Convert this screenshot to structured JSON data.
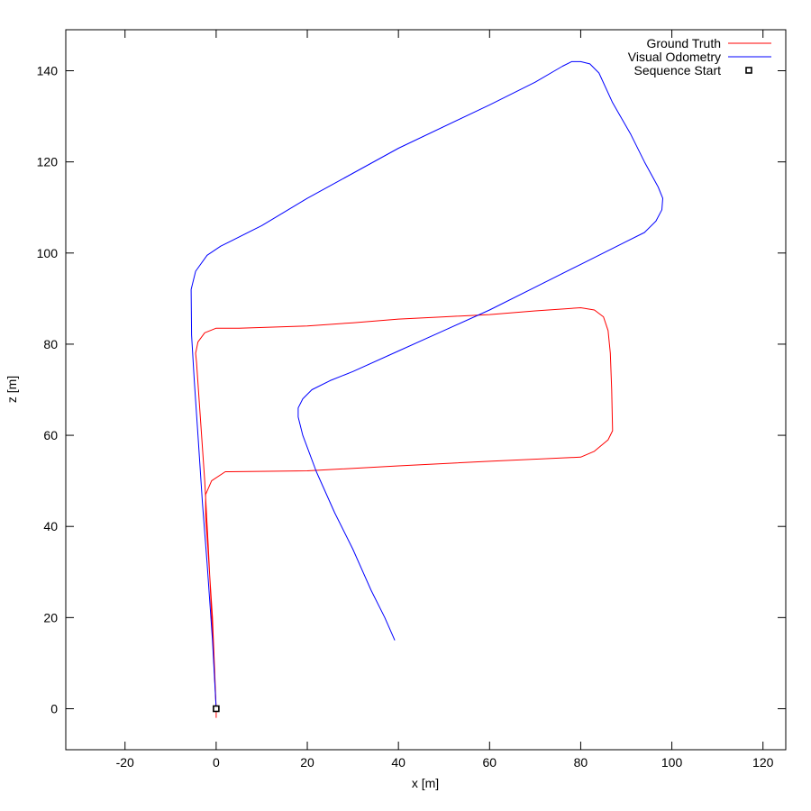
{
  "chart_data": {
    "type": "line",
    "title": "",
    "xlabel": "x [m]",
    "ylabel": "z [m]",
    "xlim": [
      -33,
      125
    ],
    "ylim": [
      -9,
      149
    ],
    "xticks": [
      -20,
      0,
      20,
      40,
      60,
      80,
      100,
      120
    ],
    "yticks": [
      0,
      20,
      40,
      60,
      80,
      100,
      120,
      140
    ],
    "grid": false,
    "legend_position": "top-right",
    "series": [
      {
        "name": "Ground Truth",
        "color": "#ff0000",
        "points": [
          [
            0,
            -2
          ],
          [
            0,
            0
          ],
          [
            -0.8,
            20
          ],
          [
            -1.8,
            35
          ],
          [
            -2.3,
            42
          ],
          [
            -2.3,
            47
          ],
          [
            -1,
            50
          ],
          [
            2,
            52
          ],
          [
            20,
            52.2
          ],
          [
            40,
            53.3
          ],
          [
            60,
            54.3
          ],
          [
            80,
            55.2
          ],
          [
            83,
            56.5
          ],
          [
            86,
            59
          ],
          [
            87,
            61
          ],
          [
            86.8,
            70
          ],
          [
            86.5,
            78
          ],
          [
            86,
            83
          ],
          [
            85,
            86
          ],
          [
            83,
            87.5
          ],
          [
            80,
            88
          ],
          [
            70,
            87.3
          ],
          [
            60,
            86.5
          ],
          [
            50,
            86
          ],
          [
            40,
            85.5
          ],
          [
            30,
            84.7
          ],
          [
            20,
            84
          ],
          [
            5,
            83.5
          ],
          [
            0,
            83.5
          ],
          [
            -2.5,
            82.5
          ],
          [
            -4,
            80.5
          ],
          [
            -4.5,
            78
          ],
          [
            -4.3,
            76
          ],
          [
            -2.5,
            50
          ],
          [
            -1.7,
            35
          ],
          [
            -0.5,
            10
          ],
          [
            0,
            0
          ]
        ]
      },
      {
        "name": "Visual Odometry",
        "color": "#0000ff",
        "points": [
          [
            0,
            0
          ],
          [
            -0.8,
            15
          ],
          [
            -2,
            32
          ],
          [
            -3,
            45
          ],
          [
            -4,
            60
          ],
          [
            -4.8,
            72
          ],
          [
            -5.4,
            82
          ],
          [
            -5.5,
            92
          ],
          [
            -4.5,
            96
          ],
          [
            -2,
            99.5
          ],
          [
            1,
            101.5
          ],
          [
            10,
            106
          ],
          [
            20,
            112
          ],
          [
            40,
            123
          ],
          [
            60,
            132.5
          ],
          [
            70,
            137.5
          ],
          [
            76,
            141
          ],
          [
            78,
            142
          ],
          [
            80,
            142
          ],
          [
            82,
            141.5
          ],
          [
            84,
            139.5
          ],
          [
            87,
            133
          ],
          [
            91,
            126
          ],
          [
            94,
            120
          ],
          [
            97,
            114.5
          ],
          [
            98,
            112
          ],
          [
            97.8,
            109.5
          ],
          [
            96.5,
            107
          ],
          [
            94,
            104.5
          ],
          [
            90,
            102.5
          ],
          [
            80,
            97.5
          ],
          [
            70,
            92.5
          ],
          [
            60,
            87.5
          ],
          [
            50,
            83
          ],
          [
            40,
            78.5
          ],
          [
            30,
            74
          ],
          [
            25,
            72
          ],
          [
            21,
            70
          ],
          [
            19,
            68
          ],
          [
            18,
            66
          ],
          [
            18,
            64
          ],
          [
            19,
            60
          ],
          [
            22,
            52
          ],
          [
            26,
            43
          ],
          [
            30,
            35
          ],
          [
            34,
            26
          ],
          [
            37,
            20
          ],
          [
            39.2,
            15
          ]
        ]
      }
    ],
    "markers": [
      {
        "name": "Sequence Start",
        "symbol": "square",
        "color": "#000000",
        "x": 0,
        "y": 0
      }
    ]
  }
}
